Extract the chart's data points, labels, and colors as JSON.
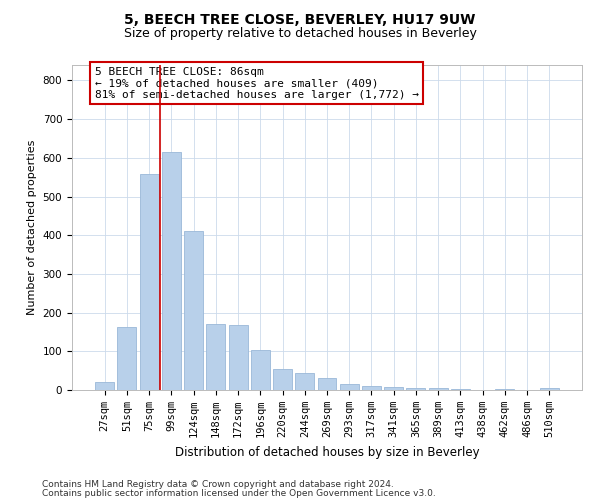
{
  "title1": "5, BEECH TREE CLOSE, BEVERLEY, HU17 9UW",
  "title2": "Size of property relative to detached houses in Beverley",
  "xlabel": "Distribution of detached houses by size in Beverley",
  "ylabel": "Number of detached properties",
  "categories": [
    "27sqm",
    "51sqm",
    "75sqm",
    "99sqm",
    "124sqm",
    "148sqm",
    "172sqm",
    "196sqm",
    "220sqm",
    "244sqm",
    "269sqm",
    "293sqm",
    "317sqm",
    "341sqm",
    "365sqm",
    "389sqm",
    "413sqm",
    "438sqm",
    "462sqm",
    "486sqm",
    "510sqm"
  ],
  "values": [
    20,
    163,
    558,
    615,
    412,
    170,
    168,
    103,
    55,
    43,
    32,
    15,
    10,
    9,
    5,
    4,
    3,
    0,
    2,
    1,
    5
  ],
  "bar_color": "#b8d0ea",
  "bar_edgecolor": "#9ab8d8",
  "grid_color": "#ccdaeb",
  "vline_x": 2.5,
  "vline_color": "#cc0000",
  "annotation_box_text": "5 BEECH TREE CLOSE: 86sqm\n← 19% of detached houses are smaller (409)\n81% of semi-detached houses are larger (1,772) →",
  "annotation_box_edgecolor": "#cc0000",
  "annotation_box_facecolor": "#ffffff",
  "ylim": [
    0,
    840
  ],
  "yticks": [
    0,
    100,
    200,
    300,
    400,
    500,
    600,
    700,
    800
  ],
  "footer1": "Contains HM Land Registry data © Crown copyright and database right 2024.",
  "footer2": "Contains public sector information licensed under the Open Government Licence v3.0.",
  "title1_fontsize": 10,
  "title2_fontsize": 9,
  "xlabel_fontsize": 8.5,
  "ylabel_fontsize": 8,
  "tick_fontsize": 7.5,
  "footer_fontsize": 6.5,
  "annotation_fontsize": 8,
  "background_color": "#ffffff"
}
